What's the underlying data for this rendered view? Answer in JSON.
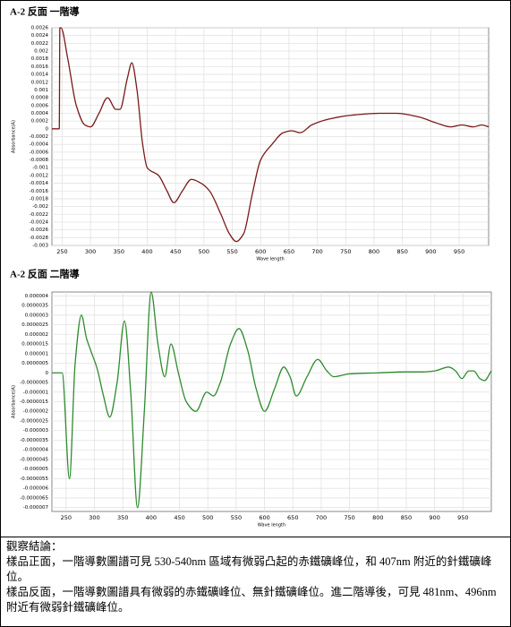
{
  "chart_data": [
    {
      "type": "line",
      "title": "A-2 反面 一階導",
      "x_label": "Wave length",
      "y_label": "Absorbance(A)",
      "color": "#7a1a1a",
      "grid": true,
      "xlim": [
        232,
        1002
      ],
      "ylim": [
        -0.003,
        0.0026
      ],
      "xticks": [
        250,
        300,
        350,
        400,
        450,
        500,
        550,
        600,
        650,
        700,
        750,
        800,
        850,
        900,
        950
      ],
      "yticks": [
        0.0026,
        0.0024,
        0.0022,
        0.002,
        0.0018,
        0.0016,
        0.0014,
        0.0012,
        0.001,
        0.0008,
        0.0006,
        0.0004,
        0.0002,
        0,
        -0.0002,
        -0.0004,
        -0.0006,
        -0.0008,
        -0.001,
        -0.0012,
        -0.0014,
        -0.0016,
        -0.0018,
        -0.002,
        -0.0022,
        -0.0024,
        -0.0026,
        -0.0028,
        -0.003
      ],
      "x": [
        232,
        245,
        246,
        248,
        260,
        275,
        290,
        300,
        315,
        330,
        345,
        352,
        365,
        373,
        382,
        392,
        400,
        420,
        435,
        447,
        462,
        478,
        495,
        510,
        530,
        545,
        557,
        570,
        585,
        600,
        620,
        640,
        655,
        670,
        690,
        720,
        760,
        810,
        840,
        880,
        910,
        935,
        955,
        975,
        990,
        1002
      ],
      "values": [
        0,
        0,
        0.0026,
        0.0026,
        0.0018,
        0.0006,
        0.0001,
        5e-05,
        0.0004,
        0.0008,
        0.0005,
        0.0005,
        0.0013,
        0.0017,
        0.001,
        -0.0004,
        -0.001,
        -0.0012,
        -0.0016,
        -0.0019,
        -0.0016,
        -0.0013,
        -0.0014,
        -0.0016,
        -0.0022,
        -0.0027,
        -0.0029,
        -0.0027,
        -0.0017,
        -0.0008,
        -0.0004,
        -0.0001,
        -5e-05,
        -0.0001,
        0.0001,
        0.00025,
        0.00035,
        0.0004,
        0.0004,
        0.0003,
        0.00015,
        5e-05,
        0.0001,
        5e-05,
        0.0001,
        5e-05
      ]
    },
    {
      "type": "line",
      "title": "A-2 反面 二階導",
      "x_label": "Wave length",
      "y_label": "Absorbance(A)",
      "color": "#2e8b2e",
      "grid": true,
      "xlim": [
        225,
        1000
      ],
      "ylim": [
        -7.2e-06,
        4.2e-06
      ],
      "xticks": [
        250,
        300,
        350,
        400,
        450,
        500,
        550,
        600,
        650,
        700,
        750,
        800,
        850,
        900,
        950
      ],
      "yticks": [
        4e-06,
        3.5e-06,
        3e-06,
        2.5e-06,
        2e-06,
        1.5e-06,
        1e-06,
        {
          "value": 5e-07,
          "label": "0.0000005"
        },
        0,
        {
          "value": -5e-07,
          "label": "-0.0000005"
        },
        -1e-06,
        -1.5e-06,
        -2e-06,
        -2.5e-06,
        -3e-06,
        -3.5e-06,
        -4e-06,
        -4.5e-06,
        -5e-06,
        -5.5e-06,
        -6e-06,
        -6.5e-06,
        -7e-06
      ],
      "x": [
        225,
        243,
        256,
        266,
        277,
        286,
        293,
        305,
        316,
        327,
        340,
        353,
        364,
        376,
        388,
        400,
        412,
        424,
        435,
        448,
        462,
        479,
        498,
        510,
        522,
        540,
        555,
        570,
        585,
        600,
        618,
        634,
        645,
        656,
        675,
        694,
        710,
        722,
        750,
        800,
        850,
        880,
        900,
        925,
        937,
        948,
        960,
        969,
        980,
        988,
        1000
      ],
      "values": [
        0,
        0,
        -5.5e-06,
        5e-07,
        3e-06,
        1.8e-06,
        1.2e-06,
        2e-07,
        -1.2e-06,
        -2.3e-06,
        -5e-07,
        2.7e-06,
        -1e-06,
        -7e-06,
        -2e-06,
        4.2e-06,
        1.5e-06,
        -2e-07,
        1.5e-06,
        0,
        -1.5e-06,
        -2e-06,
        -1e-06,
        -1.2e-06,
        -5e-07,
        1.5e-06,
        2.3e-06,
        1.2e-06,
        -8e-07,
        -2e-06,
        -8e-07,
        3e-07,
        -2e-07,
        -1.2e-06,
        -2e-07,
        7e-07,
        1e-07,
        -2e-07,
        -5e-08,
        0,
        5e-08,
        5e-08,
        1e-07,
        3e-07,
        1e-07,
        -3e-07,
        1e-07,
        1e-07,
        -3e-07,
        -4e-07,
        1e-07
      ]
    }
  ],
  "conclusion": {
    "heading": "觀察結論：",
    "paragraphs": [
      "樣品正面，一階導數圖譜可見 530-540nm 區域有微弱凸起的赤鐵礦峰位，和 407nm 附近的針鐵礦峰位。",
      "樣品反面，一階導數圖譜具有微弱的赤鐵礦峰位、無針鐵礦峰位。進二階導後，可見 481nm、496nm 附近有微弱針鐵礦峰位。"
    ]
  }
}
